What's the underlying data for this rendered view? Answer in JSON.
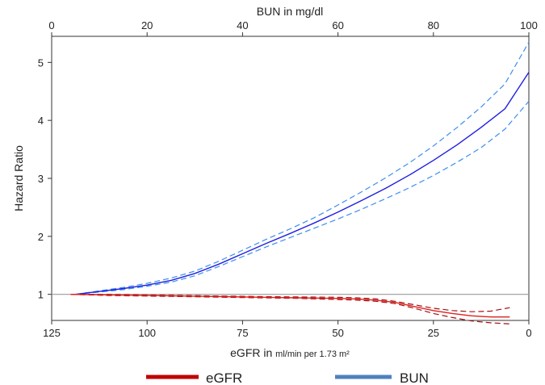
{
  "chart_data": {
    "type": "line",
    "ylabel": "Hazard Ratio",
    "top_axis": {
      "label": "BUN in mg/dl",
      "range": [
        0,
        100
      ],
      "ticks": [
        0,
        20,
        40,
        60,
        80,
        100
      ]
    },
    "bottom_axis": {
      "label_main": "eGFR in ",
      "label_unit": "ml/min per 1.73 m²",
      "range": [
        125,
        0
      ],
      "ticks": [
        125,
        100,
        75,
        50,
        25,
        0
      ]
    },
    "y_axis": {
      "range": [
        0.55,
        5.45
      ],
      "ticks": [
        1,
        2,
        3,
        4,
        5
      ]
    },
    "reference_line_y": 1,
    "grid": false,
    "legend_position": "bottom",
    "legend": [
      {
        "label": "eGFR",
        "color": "#c00000"
      },
      {
        "label": "BUN",
        "color": "#4f81bd"
      }
    ],
    "series": [
      {
        "name": "BUN",
        "axis": "top",
        "color": "#1f1fe0",
        "ci_color": "#3d8ef0",
        "x": [
          5,
          10,
          15,
          20,
          25,
          30,
          35,
          40,
          45,
          50,
          55,
          60,
          65,
          70,
          75,
          80,
          85,
          90,
          95,
          100
        ],
        "y": [
          1.0,
          1.05,
          1.1,
          1.16,
          1.24,
          1.36,
          1.52,
          1.7,
          1.88,
          2.05,
          2.23,
          2.42,
          2.62,
          2.83,
          3.06,
          3.31,
          3.58,
          3.88,
          4.2,
          4.83
        ],
        "lower": [
          1.0,
          1.04,
          1.08,
          1.14,
          1.21,
          1.32,
          1.48,
          1.65,
          1.82,
          1.98,
          2.14,
          2.3,
          2.47,
          2.65,
          2.84,
          3.05,
          3.28,
          3.53,
          3.85,
          4.33
        ],
        "upper": [
          1.0,
          1.06,
          1.12,
          1.19,
          1.28,
          1.4,
          1.57,
          1.76,
          1.95,
          2.13,
          2.32,
          2.54,
          2.77,
          3.01,
          3.27,
          3.56,
          3.88,
          4.23,
          4.63,
          5.35
        ]
      },
      {
        "name": "eGFR",
        "axis": "bottom",
        "color": "#e02020",
        "ci_color": "#a01010",
        "x": [
          120,
          110,
          100,
          90,
          80,
          70,
          60,
          50,
          45,
          40,
          35,
          30,
          25,
          20,
          15,
          10,
          5
        ],
        "y": [
          1.0,
          0.99,
          0.98,
          0.97,
          0.96,
          0.95,
          0.94,
          0.93,
          0.92,
          0.9,
          0.86,
          0.79,
          0.72,
          0.67,
          0.63,
          0.61,
          0.61
        ],
        "lower": [
          1.0,
          0.98,
          0.97,
          0.96,
          0.95,
          0.94,
          0.93,
          0.91,
          0.9,
          0.88,
          0.84,
          0.76,
          0.67,
          0.6,
          0.54,
          0.51,
          0.49
        ],
        "upper": [
          1.0,
          1.0,
          0.99,
          0.98,
          0.97,
          0.96,
          0.955,
          0.95,
          0.94,
          0.92,
          0.88,
          0.82,
          0.76,
          0.72,
          0.7,
          0.71,
          0.77
        ]
      }
    ]
  }
}
